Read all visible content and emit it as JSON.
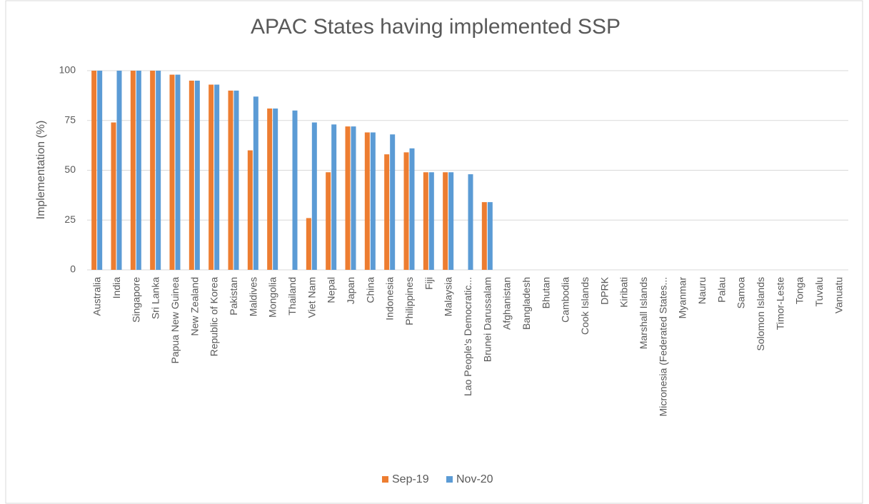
{
  "chart_data": {
    "type": "bar",
    "title": "APAC States having implemented SSP",
    "y_label": "Implementation (%)",
    "categories": [
      "Australia",
      "India",
      "Singapore",
      "Sri Lanka",
      "Papua New Guinea",
      "New Zealand",
      "Republic of Korea",
      "Pakistan",
      "Maldives",
      "Mongolia",
      "Thailand",
      "Viet Nam",
      "Nepal",
      "Japan",
      "China",
      "Indonesia",
      "Philippines",
      "Fiji",
      "Malaysia",
      "Lao People's Democratic...",
      "Brunei Darussalam",
      "Afghanistan",
      "Bangladesh",
      "Bhutan",
      "Cambodia",
      "Cook Islands",
      "DPRK",
      "Kiribati",
      "Marshall Islands",
      "Micronesia (Federated States...",
      "Myanmar",
      "Nauru",
      "Palau",
      "Samoa",
      "Solomon Islands",
      "Timor-Leste",
      "Tonga",
      "Tuvalu",
      "Vanuatu"
    ],
    "series": [
      {
        "name": "Sep-19",
        "color": "#ed7d31",
        "values": [
          100,
          74,
          100,
          100,
          98,
          95,
          93,
          90,
          60,
          81,
          0,
          26,
          49,
          72,
          69,
          58,
          59,
          49,
          49,
          0,
          34,
          0,
          0,
          0,
          0,
          0,
          0,
          0,
          0,
          0,
          0,
          0,
          0,
          0,
          0,
          0,
          0,
          0,
          0
        ]
      },
      {
        "name": "Nov-20",
        "color": "#5b9bd5",
        "values": [
          100,
          100,
          100,
          100,
          98,
          95,
          93,
          90,
          87,
          81,
          80,
          74,
          73,
          72,
          69,
          68,
          61,
          49,
          49,
          48,
          34,
          0,
          0,
          0,
          0,
          0,
          0,
          0,
          0,
          0,
          0,
          0,
          0,
          0,
          0,
          0,
          0,
          0,
          0
        ]
      }
    ],
    "ylim": [
      0,
      100
    ],
    "yticks": [
      0,
      25,
      50,
      75,
      100
    ],
    "grid": true,
    "legend": "bottom"
  }
}
